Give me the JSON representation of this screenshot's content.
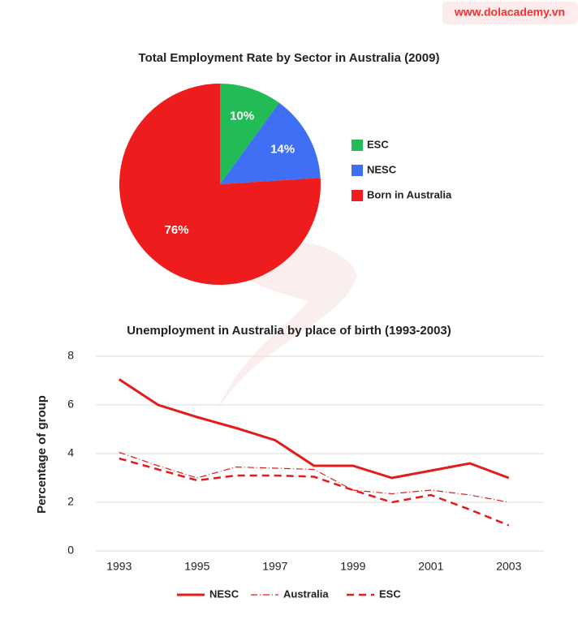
{
  "watermark": "www.dolacademy.vn",
  "chart_data": [
    {
      "type": "pie",
      "title": "Total Employment Rate by Sector in Australia (2009)",
      "categories": [
        "ESC",
        "NESC",
        "Born in Australia"
      ],
      "values": [
        10,
        14,
        76
      ],
      "value_labels": [
        "10%",
        "14%",
        "76%"
      ],
      "colors": [
        "#22bb55",
        "#3f6ff5",
        "#ee1c1c"
      ],
      "legend": "right"
    },
    {
      "type": "line",
      "title": "Unemployment in Australia by place of birth (1993-2003)",
      "ylabel": "Percentage of group",
      "x": [
        1993,
        1994,
        1995,
        1996,
        1997,
        1998,
        1999,
        2000,
        2001,
        2002,
        2003
      ],
      "xlim": [
        1992.4,
        2003.9
      ],
      "xticks": [
        1993,
        1995,
        1997,
        1999,
        2001,
        2003
      ],
      "ylim": [
        0,
        8
      ],
      "yticks": [
        0,
        2,
        4,
        6,
        8
      ],
      "grid": true,
      "legend": "bottom",
      "series": [
        {
          "name": "NESC",
          "color": "#e31b1b",
          "style": "solid",
          "values": [
            7.05,
            6.0,
            5.5,
            5.05,
            4.55,
            3.5,
            3.5,
            3.0,
            3.3,
            3.6,
            3.0
          ]
        },
        {
          "name": "Australia",
          "color": "#e31b1b",
          "style": "dashdot",
          "values": [
            4.05,
            3.5,
            3.0,
            3.45,
            3.4,
            3.35,
            2.5,
            2.35,
            2.5,
            2.3,
            2.0
          ]
        },
        {
          "name": "ESC",
          "color": "#e31b1b",
          "style": "dashed",
          "values": [
            3.8,
            3.35,
            2.9,
            3.1,
            3.1,
            3.05,
            2.5,
            2.0,
            2.3,
            1.7,
            1.05
          ]
        }
      ]
    }
  ]
}
